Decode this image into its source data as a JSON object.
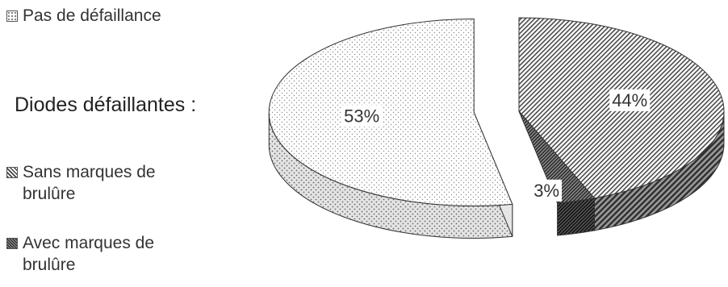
{
  "legend": {
    "no_failure": "Pas de défaillance",
    "heading": "Diodes défaillantes :",
    "no_burn_line1": "Sans marques de",
    "no_burn_line2": "brulûre",
    "burn_line1": "Avec marques de",
    "burn_line2": "brulûre"
  },
  "chart_data": {
    "type": "pie",
    "style": "3d-exploded",
    "slices": [
      {
        "label": "Pas de défaillance",
        "value": 53,
        "display": "53%",
        "pattern": "dots",
        "exploded": true
      },
      {
        "label": "Sans marques de brulûre",
        "value": 44,
        "display": "44%",
        "pattern": "diagonal-hatch"
      },
      {
        "label": "Avec marques de brulûre",
        "value": 3,
        "display": "3%",
        "pattern": "dense-hatch"
      }
    ],
    "legend_position": "left"
  }
}
